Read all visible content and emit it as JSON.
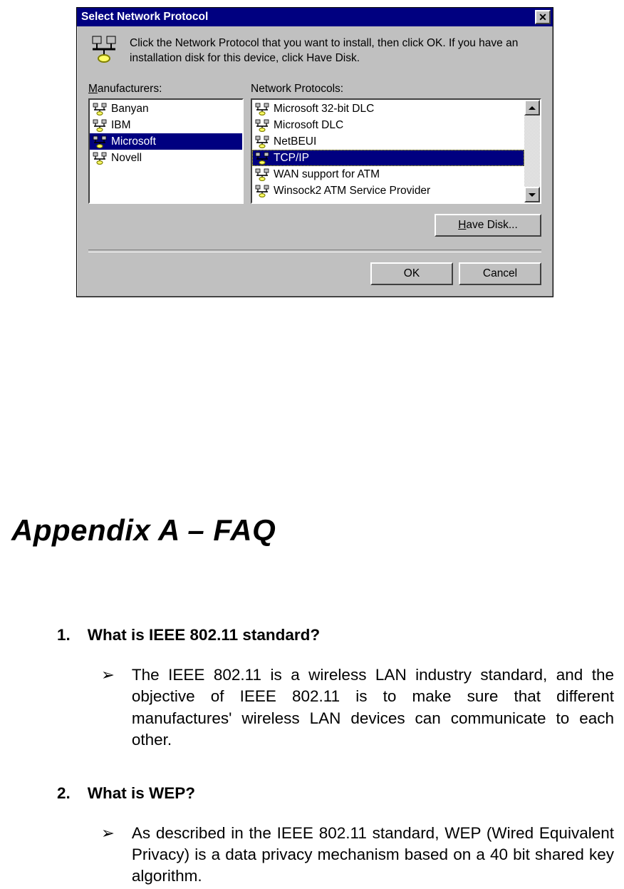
{
  "dialog": {
    "title": "Select Network Protocol",
    "close_glyph": "✕",
    "intro": "Click the Network Protocol that you want to install, then click OK. If you have an installation disk for this device, click Have Disk.",
    "manufacturers_label_pre": "M",
    "manufacturers_label_post": "anufacturers:",
    "protocols_label": "Network Protocols:",
    "manufacturers": [
      {
        "label": "Banyan",
        "selected": false
      },
      {
        "label": "IBM",
        "selected": false
      },
      {
        "label": "Microsoft",
        "selected": true
      },
      {
        "label": "Novell",
        "selected": false
      }
    ],
    "protocols": [
      {
        "label": "Microsoft 32-bit DLC",
        "selected": false
      },
      {
        "label": "Microsoft DLC",
        "selected": false
      },
      {
        "label": "NetBEUI",
        "selected": false
      },
      {
        "label": "TCP/IP",
        "selected": true
      },
      {
        "label": "WAN support for ATM",
        "selected": false
      },
      {
        "label": "Winsock2 ATM Service Provider",
        "selected": false
      }
    ],
    "have_disk_pre": "H",
    "have_disk_post": "ave Disk...",
    "ok_label": "OK",
    "cancel_label": "Cancel",
    "colors": {
      "titlebar_bg": "#000080",
      "titlebar_fg": "#ffffff",
      "face": "#c0c0c0",
      "window_bg": "#ffffff",
      "highlight_bg": "#000080",
      "highlight_fg": "#ffffff"
    }
  },
  "doc": {
    "appendix_title": "Appendix A – FAQ",
    "items": [
      {
        "num": "1.",
        "q": "What is IEEE 802.11 standard?",
        "a": "The IEEE 802.11 is a wireless LAN industry standard, and the objective of IEEE 802.11 is to make sure that different manufactures' wireless LAN devices can communicate to each other."
      },
      {
        "num": "2.",
        "q": "What is WEP?",
        "a": "As described in the IEEE 802.11 standard, WEP (Wired Equivalent Privacy) is a data privacy mechanism based on a 40 bit shared key algorithm."
      }
    ],
    "bullet_glyph": "➢"
  }
}
